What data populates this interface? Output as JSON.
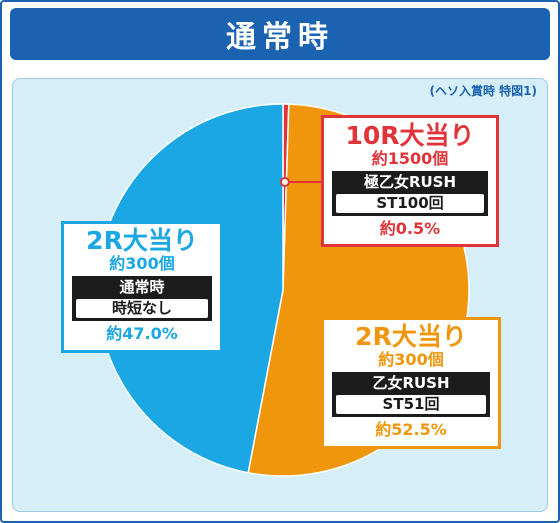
{
  "header": {
    "title": "通常時"
  },
  "note": "(ヘソ入賞時 特図1)",
  "colors": {
    "header": "#1b63b0",
    "ten_r": "#e0343a",
    "two_r_normal": "#1aa7e3",
    "two_r_rush": "#f0960c",
    "panel": "#d6eef7"
  },
  "labels": {
    "ten_r": {
      "title": "10R大当り",
      "amount": "約1500個",
      "mode": "極乙女RUSH",
      "st": "ST100回",
      "pct": "約0.5%"
    },
    "two_r_normal": {
      "title": "2R大当り",
      "amount": "約300個",
      "mode": "通常時",
      "st": "時短なし",
      "pct": "約47.0%"
    },
    "two_r_rush": {
      "title": "2R大当り",
      "amount": "約300個",
      "mode": "乙女RUSH",
      "st": "ST51回",
      "pct": "約52.5%"
    }
  },
  "chart_data": {
    "type": "pie",
    "title": "",
    "slices": [
      {
        "label": "10R大当り",
        "value": 0.5,
        "color": "#e0343a"
      },
      {
        "label": "2R大当り",
        "value": 52.5,
        "color": "#f0960c"
      },
      {
        "label": "2R大当り",
        "value": 47.0,
        "color": "#1aa7e3"
      }
    ]
  }
}
